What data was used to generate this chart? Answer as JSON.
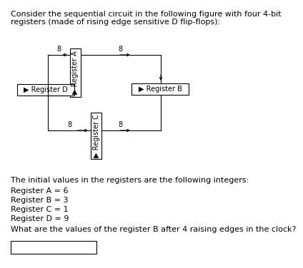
{
  "title_line1": "Consider the sequential circuit in the following figure with four 4-bit",
  "title_line2": "registers (made of rising edge sensitive D flip-flops):",
  "reg_a_label": "▶ Register A",
  "reg_b_label": "▶ Register B",
  "reg_c_label": "▶ Register C",
  "reg_d_label": "▶ Register D",
  "text_initial": "The initial values in the registers are the following integers:",
  "text_a": "Register A = 6",
  "text_b": "Register B = 3",
  "text_c": "Register C = 1",
  "text_d": "Register D = 9",
  "question": "What are the values of the register B after 4 raising edges in the clock?",
  "wire_label": "8",
  "bg_color": "#ffffff",
  "text_color": "#000000",
  "box_color": "#000000",
  "font_size": 8.0,
  "small_font": 7.0
}
